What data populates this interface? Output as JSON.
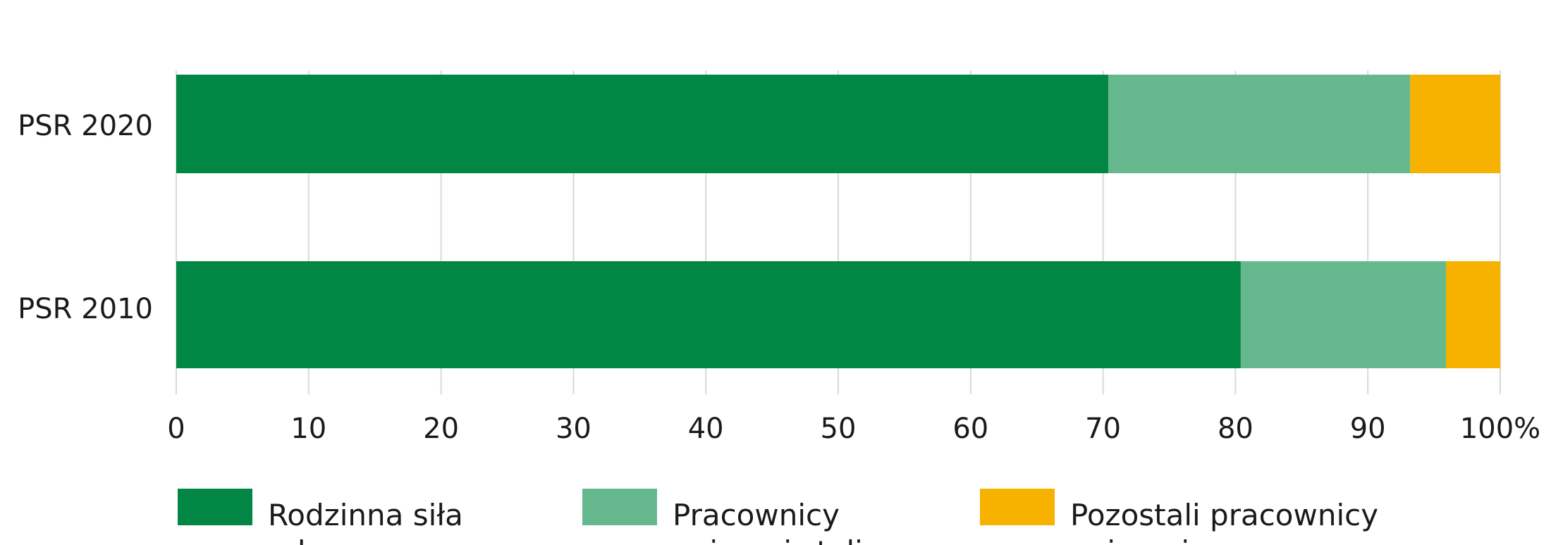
{
  "chart_data": {
    "type": "bar",
    "orientation": "horizontal",
    "stacked": true,
    "title": "",
    "xlabel": "",
    "ylabel": "",
    "categories": [
      "PSR 2020",
      "PSR 2010"
    ],
    "xlim": [
      0,
      100
    ],
    "xticks": [
      "0",
      "10",
      "20",
      "30",
      "40",
      "50",
      "60",
      "70",
      "80",
      "90",
      "100%"
    ],
    "grid": true,
    "legend_position": "bottom",
    "series": [
      {
        "name": "Rodzinna siła robocza",
        "color": "#028644",
        "values": [
          70.4,
          80.4
        ]
      },
      {
        "name": "Pracownicy najemni stali",
        "color": "#66b88e",
        "values": [
          22.8,
          15.5
        ]
      },
      {
        "name": "Pozostali pracownicy najemni",
        "color": "#f7b200",
        "values": [
          6.8,
          4.1
        ]
      }
    ]
  }
}
